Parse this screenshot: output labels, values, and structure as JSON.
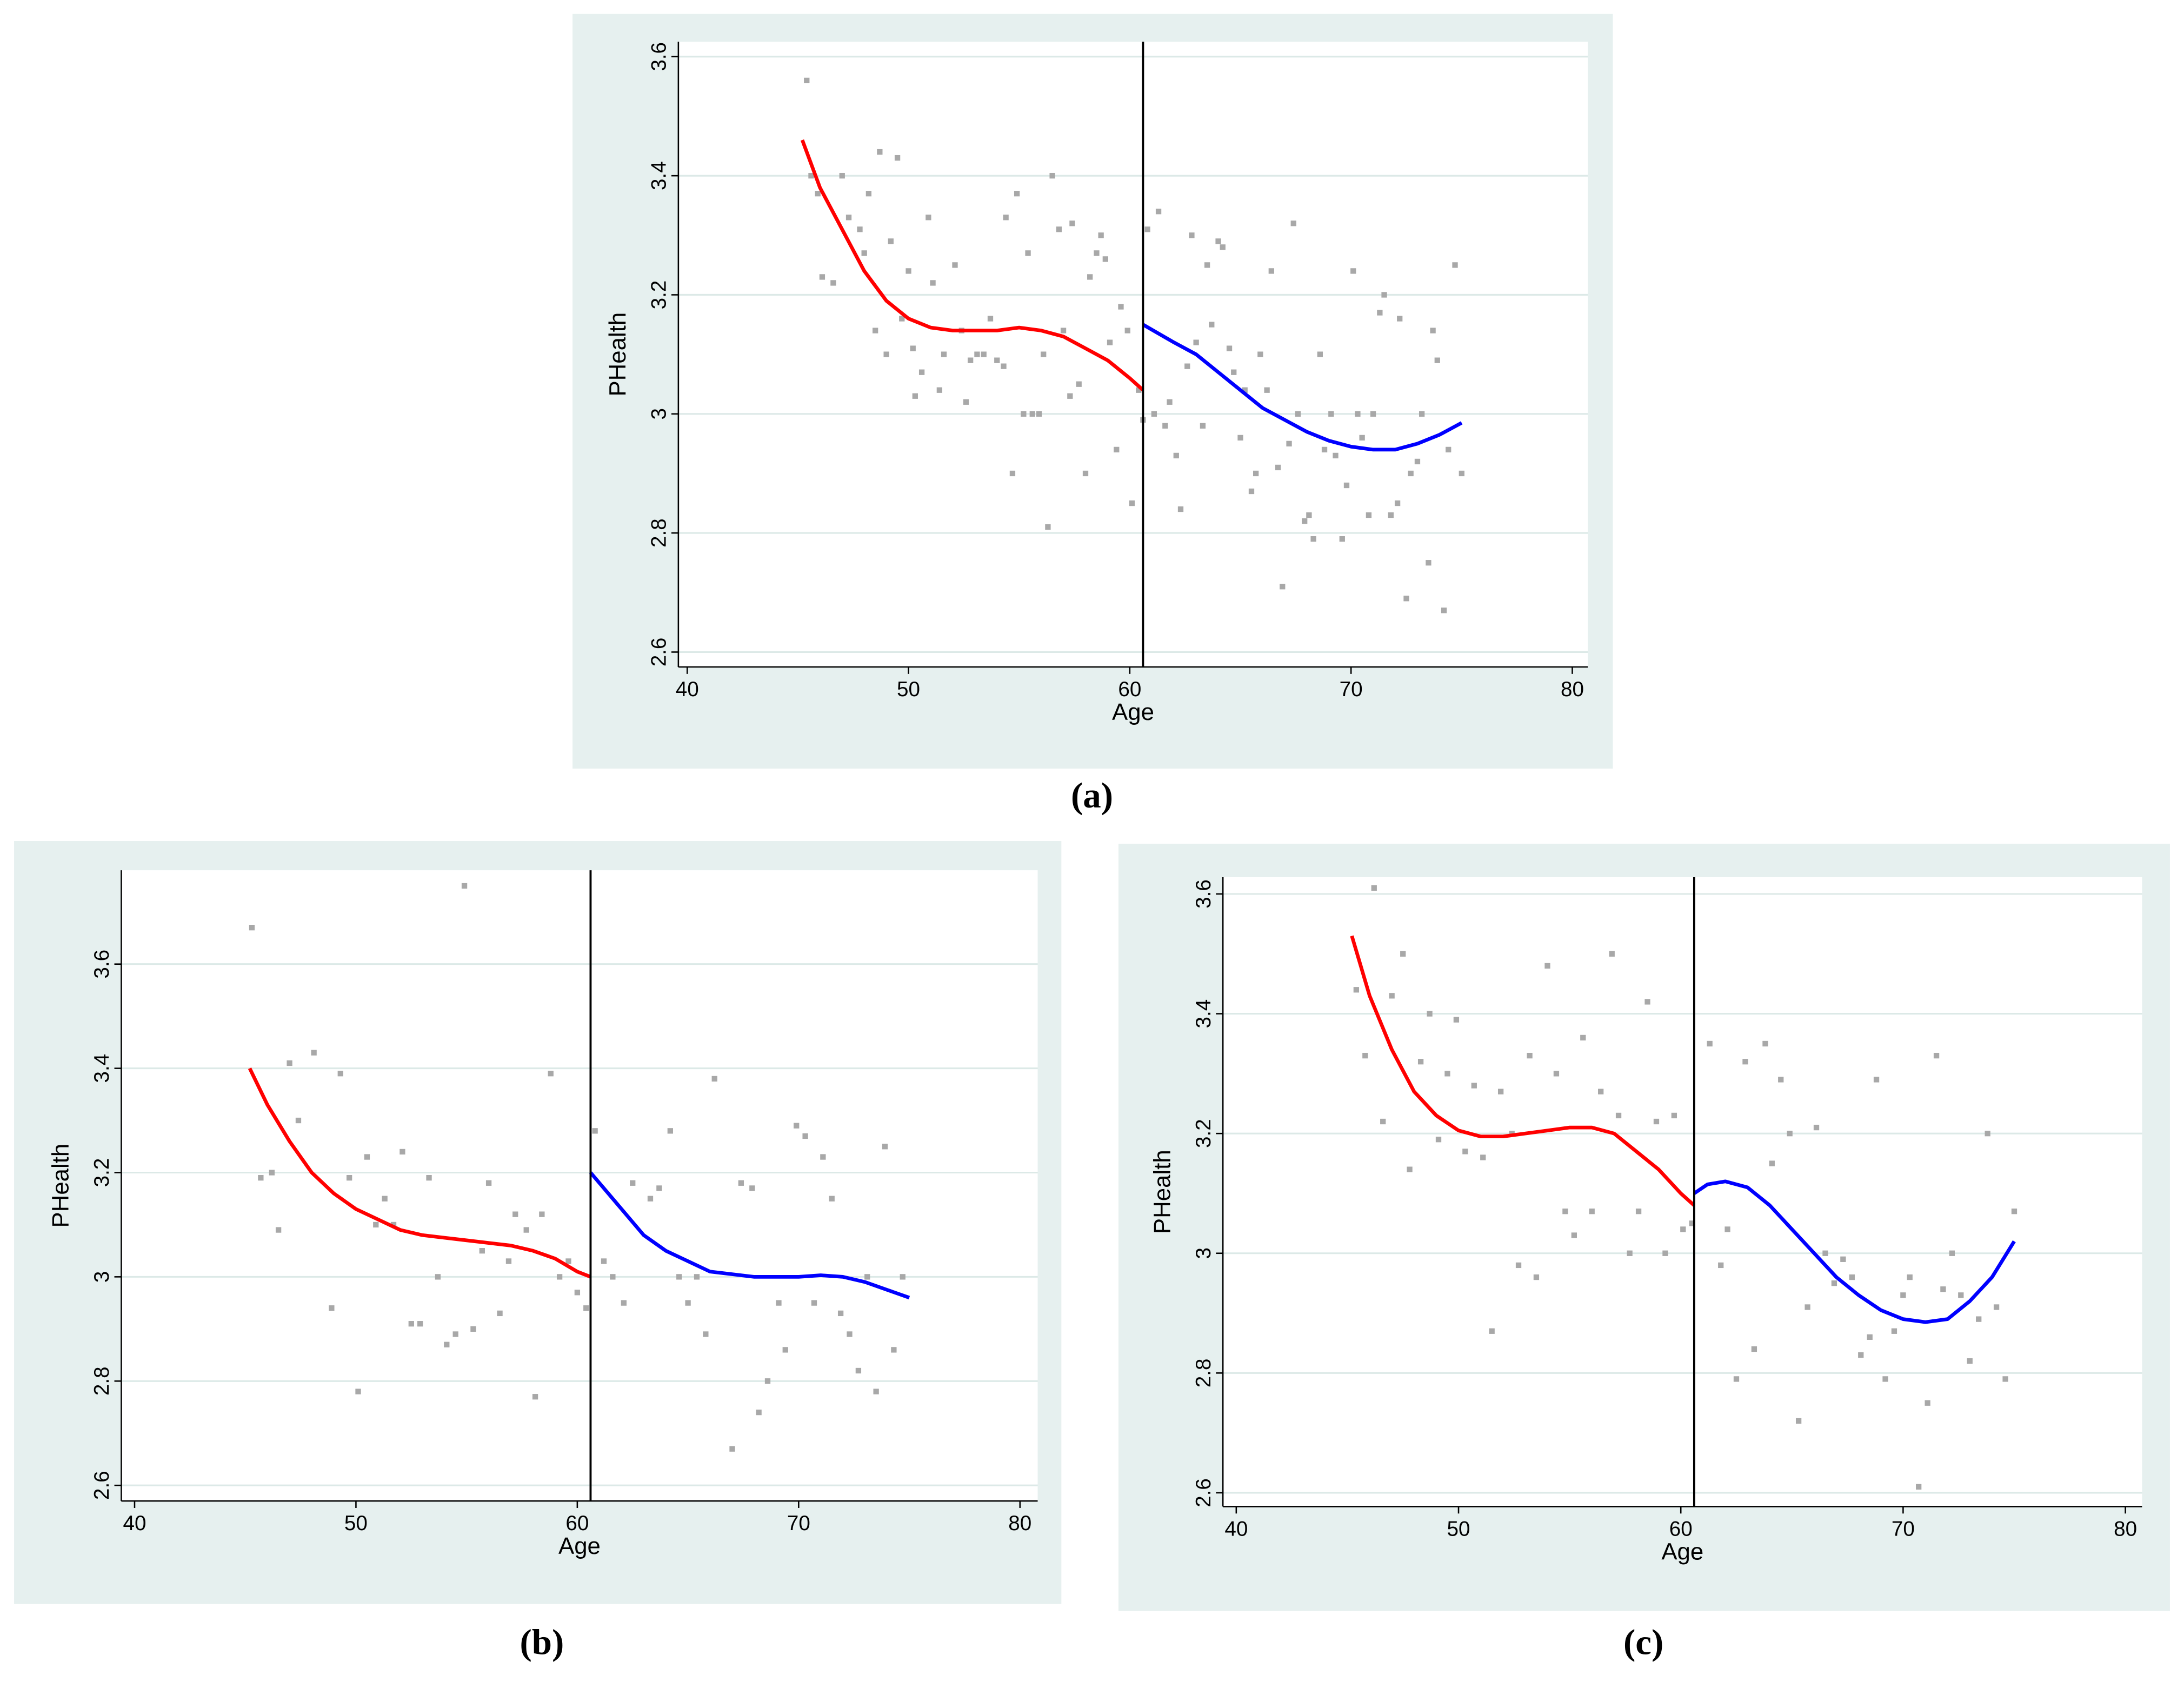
{
  "chart_data": [
    {
      "type": "scatter",
      "label": "(a)",
      "xlabel": "Age",
      "ylabel": "PHealth",
      "xlim": [
        39.6,
        80.7
      ],
      "ylim": [
        2.575,
        3.625
      ],
      "xticks": [
        40,
        50,
        60,
        70,
        80
      ],
      "yticks": [
        2.6,
        2.8,
        3,
        3.2,
        3.4,
        3.6
      ],
      "grid": true,
      "vline": 60.6,
      "points": {
        "color": "#a8a8a8",
        "x": [
          45.4,
          45.6,
          45.9,
          46.1,
          46.6,
          47.0,
          47.3,
          47.8,
          48.0,
          48.2,
          48.5,
          48.7,
          49.0,
          49.2,
          49.5,
          49.7,
          50.0,
          50.2,
          50.3,
          50.6,
          50.9,
          51.1,
          51.4,
          51.6,
          52.1,
          52.4,
          52.6,
          52.8,
          53.1,
          53.4,
          53.7,
          54.0,
          54.3,
          54.4,
          54.7,
          54.9,
          55.2,
          55.4,
          55.6,
          55.9,
          56.1,
          56.3,
          56.5,
          56.8,
          57.0,
          57.3,
          57.4,
          57.7,
          58.0,
          58.2,
          58.5,
          58.7,
          58.9,
          59.1,
          59.4,
          59.6,
          59.9,
          60.1,
          60.4,
          60.6,
          60.8,
          61.1,
          61.3,
          61.6,
          61.8,
          62.1,
          62.3,
          62.6,
          62.8,
          63.0,
          63.3,
          63.5,
          63.7,
          64.0,
          64.2,
          64.5,
          64.7,
          65.0,
          65.2,
          65.5,
          65.7,
          65.9,
          66.2,
          66.4,
          66.7,
          66.9,
          67.2,
          67.4,
          67.6,
          67.9,
          68.1,
          68.3,
          68.6,
          68.8,
          69.1,
          69.3,
          69.6,
          69.8,
          70.1,
          70.3,
          70.5,
          70.8,
          71.0,
          71.3,
          71.5,
          71.8,
          72.1,
          72.2,
          72.5,
          72.7,
          73.0,
          73.2,
          73.5,
          73.7,
          73.9,
          74.2,
          74.4,
          74.7,
          75.0
        ],
        "values": [
          3.56,
          3.4,
          3.37,
          3.23,
          3.22,
          3.4,
          3.33,
          3.31,
          3.27,
          3.37,
          3.14,
          3.44,
          3.1,
          3.29,
          3.43,
          3.16,
          3.24,
          3.11,
          3.03,
          3.07,
          3.33,
          3.22,
          3.04,
          3.1,
          3.25,
          3.14,
          3.02,
          3.09,
          3.1,
          3.1,
          3.16,
          3.09,
          3.08,
          3.33,
          2.9,
          3.37,
          3.0,
          3.27,
          3.0,
          3.0,
          3.1,
          2.81,
          3.4,
          3.31,
          3.14,
          3.03,
          3.32,
          3.05,
          2.9,
          3.23,
          3.27,
          3.3,
          3.26,
          3.12,
          2.94,
          3.18,
          3.14,
          2.85,
          3.04,
          2.99,
          3.31,
          3.0,
          3.34,
          2.98,
          3.02,
          2.93,
          2.84,
          3.08,
          3.3,
          3.12,
          2.98,
          3.25,
          3.15,
          3.29,
          3.28,
          3.11,
          3.07,
          2.96,
          3.04,
          2.87,
          2.9,
          3.1,
          3.04,
          3.24,
          2.91,
          2.71,
          2.95,
          3.32,
          3.0,
          2.82,
          2.83,
          2.79,
          3.1,
          2.94,
          3.0,
          2.93,
          2.79,
          2.88,
          3.24,
          3.0,
          2.96,
          2.83,
          3.0,
          3.17,
          3.2,
          2.83,
          2.85,
          3.16,
          2.69,
          2.9,
          2.92,
          3.0,
          2.75,
          3.14,
          3.09,
          2.67,
          2.94,
          3.25,
          2.9
        ]
      },
      "fits": [
        {
          "color": "#ff0000",
          "x": [
            45.2,
            46,
            47,
            48,
            49,
            50,
            51,
            52,
            53,
            54,
            55,
            56,
            57,
            58,
            59,
            60,
            60.6
          ],
          "values": [
            3.46,
            3.38,
            3.31,
            3.24,
            3.19,
            3.16,
            3.145,
            3.14,
            3.14,
            3.14,
            3.145,
            3.14,
            3.13,
            3.11,
            3.09,
            3.06,
            3.04
          ]
        },
        {
          "color": "#0000ff",
          "x": [
            60.6,
            62,
            63,
            64,
            65,
            66,
            67,
            68,
            69,
            70,
            71,
            72,
            73,
            74,
            75
          ],
          "values": [
            3.15,
            3.12,
            3.1,
            3.07,
            3.04,
            3.01,
            2.99,
            2.97,
            2.955,
            2.945,
            2.94,
            2.94,
            2.95,
            2.965,
            2.985
          ]
        }
      ]
    },
    {
      "type": "scatter",
      "label": "(b)",
      "xlabel": "Age",
      "ylabel": "PHealth",
      "xlim": [
        39.4,
        80.8
      ],
      "ylim": [
        2.57,
        3.78
      ],
      "xticks": [
        40,
        50,
        60,
        70,
        80
      ],
      "yticks": [
        2.6,
        2.8,
        3,
        3.2,
        3.4,
        3.6
      ],
      "grid": true,
      "vline": 60.6,
      "points": {
        "color": "#a8a8a8",
        "x": [
          45.3,
          45.7,
          46.2,
          46.5,
          47.0,
          47.4,
          48.1,
          48.9,
          49.3,
          49.7,
          50.1,
          50.5,
          50.9,
          51.3,
          51.7,
          52.1,
          52.5,
          52.9,
          53.3,
          53.7,
          54.1,
          54.5,
          54.9,
          55.3,
          55.7,
          56.0,
          56.5,
          56.9,
          57.2,
          57.7,
          58.1,
          58.4,
          58.8,
          59.2,
          59.6,
          60.0,
          60.4,
          60.8,
          61.2,
          61.6,
          62.1,
          62.5,
          63.3,
          63.7,
          64.2,
          64.6,
          65.0,
          65.4,
          65.8,
          66.2,
          67.0,
          67.4,
          67.9,
          68.2,
          68.6,
          69.1,
          69.4,
          69.9,
          70.3,
          70.7,
          71.1,
          71.5,
          71.9,
          72.3,
          72.7,
          73.1,
          73.5,
          73.9,
          74.3,
          74.7
        ],
        "values": [
          3.67,
          3.19,
          3.2,
          3.09,
          3.41,
          3.3,
          3.43,
          2.94,
          3.39,
          3.19,
          2.78,
          3.23,
          3.1,
          3.15,
          3.1,
          3.24,
          2.91,
          2.91,
          3.19,
          3.0,
          2.87,
          2.89,
          3.75,
          2.9,
          3.05,
          3.18,
          2.93,
          3.03,
          3.12,
          3.09,
          2.77,
          3.12,
          3.39,
          3.0,
          3.03,
          2.97,
          2.94,
          3.28,
          3.03,
          3.0,
          2.95,
          3.18,
          3.15,
          3.17,
          3.28,
          3.0,
          2.95,
          3.0,
          2.89,
          3.38,
          2.67,
          3.18,
          3.17,
          2.74,
          2.8,
          2.95,
          2.86,
          3.29,
          3.27,
          2.95,
          3.23,
          3.15,
          2.93,
          2.89,
          2.82,
          3.0,
          2.78,
          3.25,
          2.86,
          3.0
        ]
      },
      "fits": [
        {
          "color": "#ff0000",
          "x": [
            45.2,
            46,
            47,
            48,
            49,
            50,
            51,
            52,
            53,
            54,
            55,
            56,
            57,
            58,
            59,
            60,
            60.6
          ],
          "values": [
            3.4,
            3.33,
            3.26,
            3.2,
            3.16,
            3.13,
            3.11,
            3.09,
            3.08,
            3.075,
            3.07,
            3.065,
            3.06,
            3.05,
            3.035,
            3.01,
            3.0
          ]
        },
        {
          "color": "#0000ff",
          "x": [
            60.6,
            62,
            63,
            64,
            65,
            66,
            67,
            68,
            69,
            70,
            71,
            72,
            73,
            74,
            75
          ],
          "values": [
            3.2,
            3.13,
            3.08,
            3.05,
            3.03,
            3.01,
            3.005,
            3.0,
            3.0,
            3.0,
            3.003,
            3.0,
            2.99,
            2.975,
            2.96
          ]
        }
      ]
    },
    {
      "type": "scatter",
      "label": "(c)",
      "xlabel": "Age",
      "ylabel": "PHealth",
      "xlim": [
        39.4,
        80.75
      ],
      "ylim": [
        2.577,
        3.628
      ],
      "xticks": [
        40,
        50,
        60,
        70,
        80
      ],
      "yticks": [
        2.6,
        2.8,
        3,
        3.2,
        3.4,
        3.6
      ],
      "grid": true,
      "vline": 60.6,
      "points": {
        "color": "#a8a8a8",
        "x": [
          45.4,
          45.8,
          46.2,
          46.6,
          47.0,
          47.5,
          47.8,
          48.3,
          48.7,
          49.1,
          49.5,
          49.9,
          50.3,
          50.7,
          51.1,
          51.5,
          51.9,
          52.4,
          52.7,
          53.2,
          53.5,
          54.0,
          54.4,
          54.8,
          55.2,
          55.6,
          56.0,
          56.4,
          56.9,
          57.2,
          57.7,
          58.1,
          58.5,
          58.9,
          59.3,
          59.7,
          60.1,
          60.5,
          61.3,
          61.8,
          62.1,
          62.5,
          62.9,
          63.3,
          63.8,
          64.1,
          64.5,
          64.9,
          65.3,
          65.7,
          66.1,
          66.5,
          66.9,
          67.3,
          67.7,
          68.1,
          68.5,
          68.8,
          69.2,
          69.6,
          70.0,
          70.3,
          70.7,
          71.1,
          71.5,
          71.8,
          72.2,
          72.6,
          73.0,
          73.4,
          73.8,
          74.2,
          74.6,
          75.0
        ],
        "values": [
          3.44,
          3.33,
          3.61,
          3.22,
          3.43,
          3.5,
          3.14,
          3.32,
          3.4,
          3.19,
          3.3,
          3.39,
          3.17,
          3.28,
          3.16,
          2.87,
          3.27,
          3.2,
          2.98,
          3.33,
          2.96,
          3.48,
          3.3,
          3.07,
          3.03,
          3.36,
          3.07,
          3.27,
          3.5,
          3.23,
          3.0,
          3.07,
          3.42,
          3.22,
          3.0,
          3.23,
          3.04,
          3.05,
          3.35,
          2.98,
          3.04,
          2.79,
          3.32,
          2.84,
          3.35,
          3.15,
          3.29,
          3.2,
          2.72,
          2.91,
          3.21,
          3.0,
          2.95,
          2.99,
          2.96,
          2.83,
          2.86,
          3.29,
          2.79,
          2.87,
          2.93,
          2.96,
          2.61,
          2.75,
          3.33,
          2.94,
          3.0,
          2.93,
          2.82,
          2.89,
          3.2,
          2.91,
          2.79,
          3.07
        ]
      },
      "fits": [
        {
          "color": "#ff0000",
          "x": [
            45.2,
            46,
            47,
            48,
            49,
            50,
            51,
            52,
            53,
            54,
            55,
            56,
            57,
            58,
            59,
            60,
            60.6
          ],
          "values": [
            3.53,
            3.43,
            3.34,
            3.27,
            3.23,
            3.205,
            3.195,
            3.195,
            3.2,
            3.205,
            3.21,
            3.21,
            3.2,
            3.17,
            3.14,
            3.1,
            3.08
          ]
        },
        {
          "color": "#0000ff",
          "x": [
            60.6,
            61.2,
            62,
            63,
            64,
            65,
            66,
            67,
            68,
            69,
            70,
            71,
            72,
            73,
            74,
            75
          ],
          "values": [
            3.1,
            3.115,
            3.12,
            3.11,
            3.08,
            3.04,
            3.0,
            2.96,
            2.93,
            2.905,
            2.89,
            2.885,
            2.89,
            2.92,
            2.96,
            3.02
          ]
        }
      ]
    }
  ]
}
